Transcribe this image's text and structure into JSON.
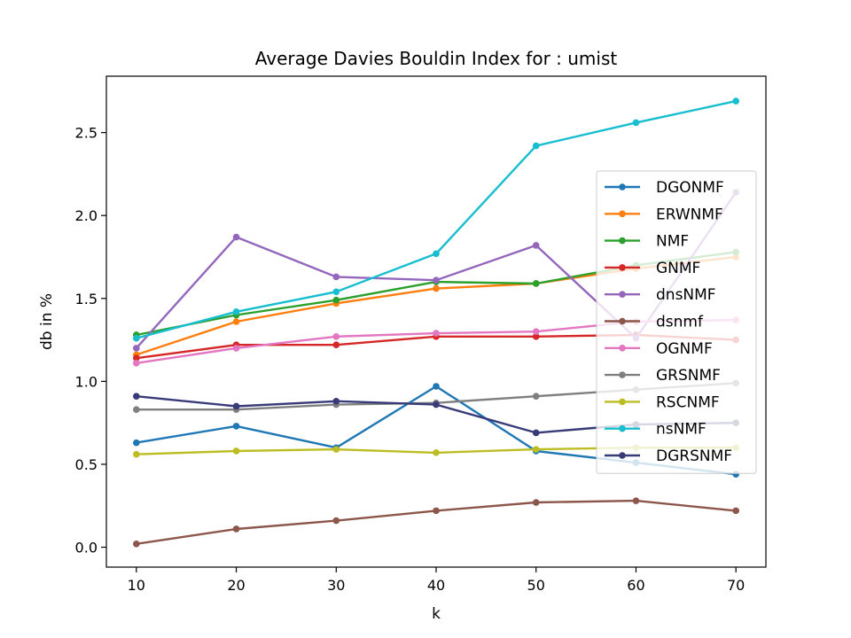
{
  "chart_data": {
    "type": "line",
    "title": "Average Davies Bouldin Index for : umist",
    "xlabel": "k",
    "ylabel": "db in %",
    "x": [
      10,
      20,
      30,
      40,
      50,
      60,
      70
    ],
    "xlim": [
      7,
      73
    ],
    "ylim": [
      -0.12,
      2.84
    ],
    "xticks": [
      10,
      20,
      30,
      40,
      50,
      60,
      70
    ],
    "yticks": [
      0.0,
      0.5,
      1.0,
      1.5,
      2.0,
      2.5
    ],
    "ytick_labels": [
      "0.0",
      "0.5",
      "1.0",
      "1.5",
      "2.0",
      "2.5"
    ],
    "legend_position": "right",
    "grid": false,
    "series": [
      {
        "name": "DGONMF",
        "color": "#1f77b4",
        "values": [
          0.63,
          0.73,
          0.6,
          0.97,
          0.58,
          0.51,
          0.44
        ]
      },
      {
        "name": "ERWNMF",
        "color": "#ff7f0e",
        "values": [
          1.16,
          1.36,
          1.47,
          1.56,
          1.59,
          1.68,
          1.75
        ]
      },
      {
        "name": "NMF",
        "color": "#2ca02c",
        "values": [
          1.28,
          1.4,
          1.49,
          1.6,
          1.59,
          1.7,
          1.78
        ]
      },
      {
        "name": "GNMF",
        "color": "#d62728",
        "values": [
          1.14,
          1.22,
          1.22,
          1.27,
          1.27,
          1.28,
          1.25
        ]
      },
      {
        "name": "dnsNMF",
        "color": "#9467bd",
        "values": [
          1.2,
          1.87,
          1.63,
          1.61,
          1.82,
          1.26,
          2.14
        ]
      },
      {
        "name": "dsnmf",
        "color": "#8c564b",
        "values": [
          0.02,
          0.11,
          0.16,
          0.22,
          0.27,
          0.28,
          0.22
        ]
      },
      {
        "name": "OGNMF",
        "color": "#e377c2",
        "values": [
          1.11,
          1.2,
          1.27,
          1.29,
          1.3,
          1.36,
          1.37
        ]
      },
      {
        "name": "GRSNMF",
        "color": "#7f7f7f",
        "values": [
          0.83,
          0.83,
          0.86,
          0.87,
          0.91,
          0.95,
          0.99
        ]
      },
      {
        "name": "RSCNMF",
        "color": "#bcbd22",
        "values": [
          0.56,
          0.58,
          0.59,
          0.57,
          0.59,
          0.6,
          0.6
        ]
      },
      {
        "name": "nsNMF",
        "color": "#17becf",
        "values": [
          1.26,
          1.42,
          1.54,
          1.77,
          2.42,
          2.56,
          2.69
        ]
      },
      {
        "name": "DGRSNMF",
        "color": "#393b79",
        "values": [
          0.91,
          0.85,
          0.88,
          0.86,
          0.69,
          0.74,
          0.75
        ]
      }
    ]
  }
}
